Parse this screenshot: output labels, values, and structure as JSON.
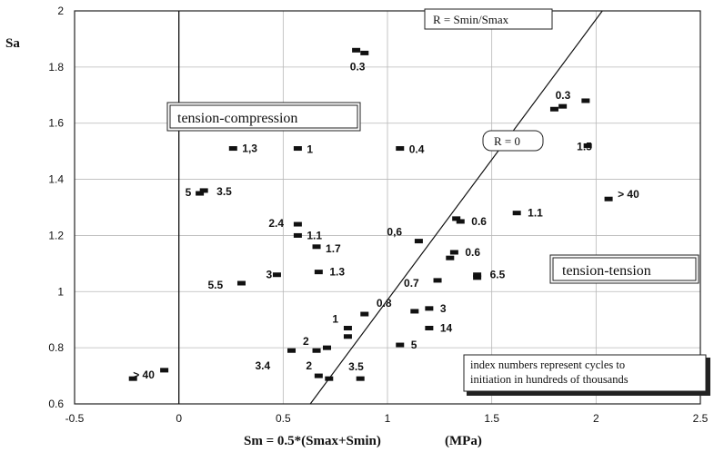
{
  "chart_data": {
    "type": "scatter",
    "xlabel": "Sm = 0.5*(Smax+Smin)",
    "xunit": "(MPa)",
    "ylabel": "Sa",
    "xlim": [
      -0.5,
      2.5
    ],
    "ylim": [
      0.6,
      2.0
    ],
    "x_ticks": [
      "-0.5",
      "0",
      "0.5",
      "1",
      "1.5",
      "2",
      "2.5"
    ],
    "y_ticks": [
      "0.6",
      "0.8",
      "1",
      "1.2",
      "1.4",
      "1.6",
      "1.8",
      "2"
    ],
    "grid": true,
    "annotations": {
      "r_line_box": "R = Smin/Smax",
      "r_zero_box": "R = 0",
      "region_left": "tension-compression",
      "region_right": "tension-tension",
      "note_line1": "index numbers represent cycles to",
      "note_line2": "initiation in hundreds of thousands"
    },
    "r_zero_line": [
      [
        0.63,
        0.6
      ],
      [
        2.03,
        2.0
      ]
    ],
    "points": [
      {
        "x": 0.85,
        "y": 1.86
      },
      {
        "x": 0.89,
        "y": 1.85,
        "label": "0.3"
      },
      {
        "x": 1.8,
        "y": 1.65
      },
      {
        "x": 1.84,
        "y": 1.66,
        "label": "0.3"
      },
      {
        "x": 1.95,
        "y": 1.68
      },
      {
        "x": 0.26,
        "y": 1.51,
        "label": "1,3"
      },
      {
        "x": 0.57,
        "y": 1.51,
        "label": "1"
      },
      {
        "x": 1.06,
        "y": 1.51,
        "label": "0.4"
      },
      {
        "x": 1.96,
        "y": 1.52,
        "label": "1.5"
      },
      {
        "x": 0.1,
        "y": 1.35,
        "label": "5"
      },
      {
        "x": 0.12,
        "y": 1.36,
        "label": "3.5"
      },
      {
        "x": 2.06,
        "y": 1.33,
        "label": "> 40"
      },
      {
        "x": 1.33,
        "y": 1.26
      },
      {
        "x": 1.35,
        "y": 1.25,
        "label": "0.6"
      },
      {
        "x": 1.62,
        "y": 1.28,
        "label": "1.1"
      },
      {
        "x": 0.57,
        "y": 1.24,
        "label": "2.4"
      },
      {
        "x": 0.57,
        "y": 1.2,
        "label": "1.1"
      },
      {
        "x": 0.66,
        "y": 1.16,
        "label": "1.7"
      },
      {
        "x": 1.15,
        "y": 1.18,
        "label": "0,6"
      },
      {
        "x": 1.3,
        "y": 1.12
      },
      {
        "x": 1.32,
        "y": 1.14,
        "label": "0.6"
      },
      {
        "x": 0.47,
        "y": 1.06,
        "label": "3"
      },
      {
        "x": 0.67,
        "y": 1.07,
        "label": "1.3"
      },
      {
        "x": 0.3,
        "y": 1.03,
        "label": "5.5"
      },
      {
        "x": 1.24,
        "y": 1.04,
        "label": "0.7"
      },
      {
        "x": 1.43,
        "y": 1.05
      },
      {
        "x": 1.43,
        "y": 1.06,
        "label": "6.5"
      },
      {
        "x": 0.89,
        "y": 0.92
      },
      {
        "x": 0.81,
        "y": 0.87,
        "label": "1"
      },
      {
        "x": 0.81,
        "y": 0.84
      },
      {
        "x": 1.13,
        "y": 0.93,
        "label": "0.8"
      },
      {
        "x": 1.2,
        "y": 0.94,
        "label": "3"
      },
      {
        "x": 1.2,
        "y": 0.87,
        "label": "14"
      },
      {
        "x": 0.54,
        "y": 0.79,
        "label": "3.4"
      },
      {
        "x": 0.66,
        "y": 0.79,
        "label": "2"
      },
      {
        "x": 0.71,
        "y": 0.8
      },
      {
        "x": 1.06,
        "y": 0.81,
        "label": "5"
      },
      {
        "x": 0.67,
        "y": 0.7,
        "label": "2"
      },
      {
        "x": 0.72,
        "y": 0.69
      },
      {
        "x": 0.87,
        "y": 0.69,
        "label": "3.5"
      },
      {
        "x": -0.22,
        "y": 0.69,
        "label": "> 40"
      },
      {
        "x": -0.07,
        "y": 0.72
      }
    ]
  }
}
